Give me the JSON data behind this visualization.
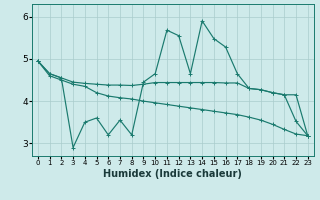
{
  "xlabel": "Humidex (Indice chaleur)",
  "bg_color": "#ceeaea",
  "grid_color": "#aacccc",
  "line_color": "#1a7a6e",
  "xlim": [
    -0.5,
    23.5
  ],
  "ylim": [
    2.7,
    6.3
  ],
  "yticks": [
    3,
    4,
    5,
    6
  ],
  "xticks": [
    0,
    1,
    2,
    3,
    4,
    5,
    6,
    7,
    8,
    9,
    10,
    11,
    12,
    13,
    14,
    15,
    16,
    17,
    18,
    19,
    20,
    21,
    22,
    23
  ],
  "line1_x": [
    0,
    1,
    2,
    3,
    4,
    5,
    6,
    7,
    8,
    9,
    10,
    11,
    12,
    13,
    14,
    15,
    16,
    17,
    18,
    19,
    20,
    21,
    22,
    23
  ],
  "line1_y": [
    4.95,
    4.65,
    4.55,
    4.45,
    4.42,
    4.4,
    4.38,
    4.38,
    4.37,
    4.4,
    4.44,
    4.44,
    4.44,
    4.44,
    4.44,
    4.44,
    4.43,
    4.43,
    4.3,
    4.27,
    4.2,
    4.15,
    4.15,
    3.18
  ],
  "line2_x": [
    0,
    1,
    2,
    3,
    4,
    5,
    6,
    7,
    8,
    9,
    10,
    11,
    12,
    13,
    14,
    15,
    16,
    17,
    18,
    19,
    20,
    21,
    22,
    23
  ],
  "line2_y": [
    4.95,
    4.65,
    4.55,
    2.9,
    3.5,
    3.6,
    3.2,
    3.55,
    3.2,
    4.45,
    4.65,
    5.68,
    5.55,
    4.65,
    5.9,
    5.48,
    5.28,
    4.65,
    4.3,
    4.27,
    4.2,
    4.15,
    3.52,
    3.18
  ],
  "line3_x": [
    0,
    1,
    2,
    3,
    4,
    5,
    6,
    7,
    8,
    9,
    10,
    11,
    12,
    13,
    14,
    15,
    16,
    17,
    18,
    19,
    20,
    21,
    22,
    23
  ],
  "line3_y": [
    4.95,
    4.6,
    4.5,
    4.4,
    4.35,
    4.2,
    4.12,
    4.08,
    4.05,
    4.0,
    3.96,
    3.92,
    3.88,
    3.84,
    3.8,
    3.76,
    3.72,
    3.68,
    3.62,
    3.55,
    3.45,
    3.33,
    3.22,
    3.18
  ]
}
